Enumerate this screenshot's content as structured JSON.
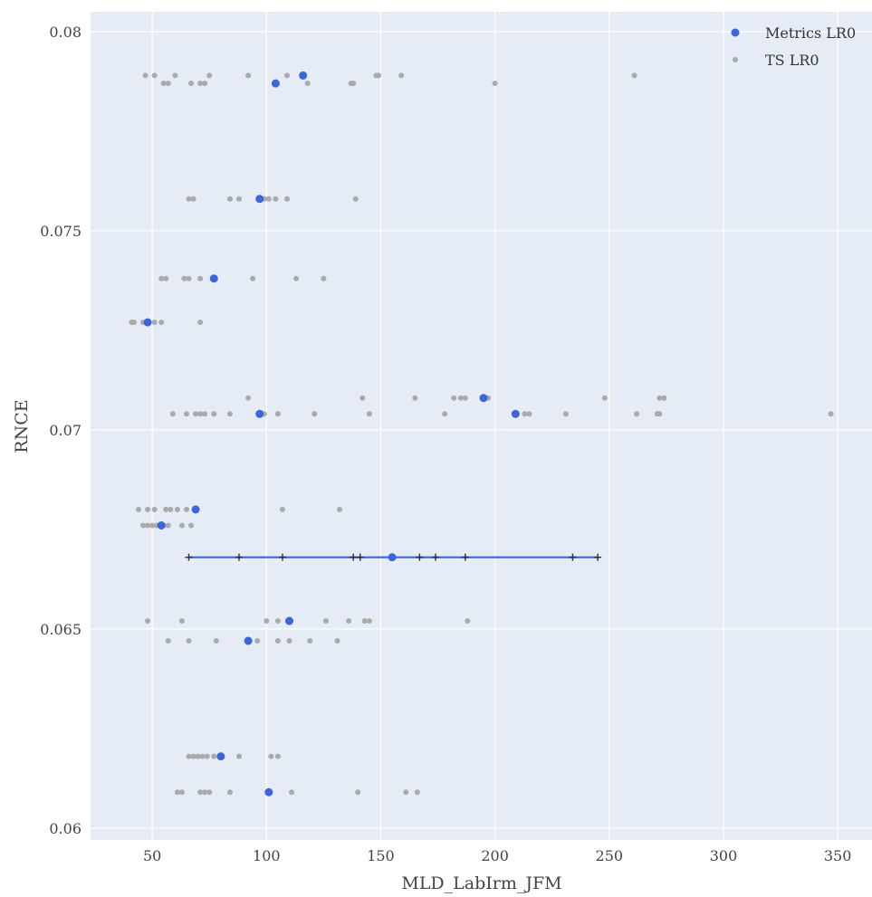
{
  "chart_data": {
    "type": "scatter",
    "xlabel": "MLD_LabIrm_JFM",
    "ylabel": "RNCE",
    "xlim": [
      23,
      365
    ],
    "ylim": [
      0.0597,
      0.0805
    ],
    "xticks": [
      50,
      100,
      150,
      200,
      250,
      300,
      350
    ],
    "xtick_labels": [
      "50",
      "100",
      "150",
      "200",
      "250",
      "300",
      "350"
    ],
    "yticks": [
      0.06,
      0.065,
      0.07,
      0.075,
      0.08
    ],
    "ytick_labels": [
      "0.06",
      "0.065",
      "0.07",
      "0.075",
      "0.08"
    ],
    "grid": true,
    "legend_position": "top-right",
    "series": [
      {
        "name": "TS LR0",
        "color": "#aaaaaa",
        "points": [
          {
            "x": 47,
            "y": 0.0789
          },
          {
            "x": 51,
            "y": 0.0789
          },
          {
            "x": 55,
            "y": 0.0787
          },
          {
            "x": 57,
            "y": 0.0787
          },
          {
            "x": 60,
            "y": 0.0789
          },
          {
            "x": 67,
            "y": 0.0787
          },
          {
            "x": 71,
            "y": 0.0787
          },
          {
            "x": 73,
            "y": 0.0787
          },
          {
            "x": 75,
            "y": 0.0789
          },
          {
            "x": 92,
            "y": 0.0789
          },
          {
            "x": 109,
            "y": 0.0789
          },
          {
            "x": 118,
            "y": 0.0787
          },
          {
            "x": 137,
            "y": 0.0787
          },
          {
            "x": 138,
            "y": 0.0787
          },
          {
            "x": 148,
            "y": 0.0789
          },
          {
            "x": 149,
            "y": 0.0789
          },
          {
            "x": 159,
            "y": 0.0789
          },
          {
            "x": 200,
            "y": 0.0787
          },
          {
            "x": 261,
            "y": 0.0789
          },
          {
            "x": 66,
            "y": 0.0758
          },
          {
            "x": 68,
            "y": 0.0758
          },
          {
            "x": 84,
            "y": 0.0758
          },
          {
            "x": 88,
            "y": 0.0758
          },
          {
            "x": 99,
            "y": 0.0758
          },
          {
            "x": 101,
            "y": 0.0758
          },
          {
            "x": 104,
            "y": 0.0758
          },
          {
            "x": 109,
            "y": 0.0758
          },
          {
            "x": 139,
            "y": 0.0758
          },
          {
            "x": 54,
            "y": 0.0738
          },
          {
            "x": 56,
            "y": 0.0738
          },
          {
            "x": 64,
            "y": 0.0738
          },
          {
            "x": 66,
            "y": 0.0738
          },
          {
            "x": 71,
            "y": 0.0738
          },
          {
            "x": 94,
            "y": 0.0738
          },
          {
            "x": 113,
            "y": 0.0738
          },
          {
            "x": 125,
            "y": 0.0738
          },
          {
            "x": 41,
            "y": 0.0727
          },
          {
            "x": 42,
            "y": 0.0727
          },
          {
            "x": 46,
            "y": 0.0727
          },
          {
            "x": 51,
            "y": 0.0727
          },
          {
            "x": 54,
            "y": 0.0727
          },
          {
            "x": 71,
            "y": 0.0727
          },
          {
            "x": 92,
            "y": 0.0708
          },
          {
            "x": 142,
            "y": 0.0708
          },
          {
            "x": 165,
            "y": 0.0708
          },
          {
            "x": 182,
            "y": 0.0708
          },
          {
            "x": 185,
            "y": 0.0708
          },
          {
            "x": 187,
            "y": 0.0708
          },
          {
            "x": 197,
            "y": 0.0708
          },
          {
            "x": 248,
            "y": 0.0708
          },
          {
            "x": 272,
            "y": 0.0708
          },
          {
            "x": 274,
            "y": 0.0708
          },
          {
            "x": 59,
            "y": 0.0704
          },
          {
            "x": 65,
            "y": 0.0704
          },
          {
            "x": 69,
            "y": 0.0704
          },
          {
            "x": 71,
            "y": 0.0704
          },
          {
            "x": 73,
            "y": 0.0704
          },
          {
            "x": 77,
            "y": 0.0704
          },
          {
            "x": 84,
            "y": 0.0704
          },
          {
            "x": 99,
            "y": 0.0704
          },
          {
            "x": 105,
            "y": 0.0704
          },
          {
            "x": 121,
            "y": 0.0704
          },
          {
            "x": 145,
            "y": 0.0704
          },
          {
            "x": 178,
            "y": 0.0704
          },
          {
            "x": 213,
            "y": 0.0704
          },
          {
            "x": 215,
            "y": 0.0704
          },
          {
            "x": 231,
            "y": 0.0704
          },
          {
            "x": 262,
            "y": 0.0704
          },
          {
            "x": 271,
            "y": 0.0704
          },
          {
            "x": 272,
            "y": 0.0704
          },
          {
            "x": 347,
            "y": 0.0704
          },
          {
            "x": 44,
            "y": 0.068
          },
          {
            "x": 48,
            "y": 0.068
          },
          {
            "x": 51,
            "y": 0.068
          },
          {
            "x": 56,
            "y": 0.068
          },
          {
            "x": 58,
            "y": 0.068
          },
          {
            "x": 61,
            "y": 0.068
          },
          {
            "x": 65,
            "y": 0.068
          },
          {
            "x": 107,
            "y": 0.068
          },
          {
            "x": 132,
            "y": 0.068
          },
          {
            "x": 46,
            "y": 0.0676
          },
          {
            "x": 48,
            "y": 0.0676
          },
          {
            "x": 50,
            "y": 0.0676
          },
          {
            "x": 52,
            "y": 0.0676
          },
          {
            "x": 55,
            "y": 0.0676
          },
          {
            "x": 57,
            "y": 0.0676
          },
          {
            "x": 63,
            "y": 0.0676
          },
          {
            "x": 67,
            "y": 0.0676
          },
          {
            "x": 48,
            "y": 0.0652
          },
          {
            "x": 63,
            "y": 0.0652
          },
          {
            "x": 100,
            "y": 0.0652
          },
          {
            "x": 105,
            "y": 0.0652
          },
          {
            "x": 126,
            "y": 0.0652
          },
          {
            "x": 136,
            "y": 0.0652
          },
          {
            "x": 143,
            "y": 0.0652
          },
          {
            "x": 145,
            "y": 0.0652
          },
          {
            "x": 188,
            "y": 0.0652
          },
          {
            "x": 57,
            "y": 0.0647
          },
          {
            "x": 66,
            "y": 0.0647
          },
          {
            "x": 78,
            "y": 0.0647
          },
          {
            "x": 96,
            "y": 0.0647
          },
          {
            "x": 105,
            "y": 0.0647
          },
          {
            "x": 110,
            "y": 0.0647
          },
          {
            "x": 119,
            "y": 0.0647
          },
          {
            "x": 131,
            "y": 0.0647
          },
          {
            "x": 66,
            "y": 0.0618
          },
          {
            "x": 68,
            "y": 0.0618
          },
          {
            "x": 70,
            "y": 0.0618
          },
          {
            "x": 72,
            "y": 0.0618
          },
          {
            "x": 74,
            "y": 0.0618
          },
          {
            "x": 77,
            "y": 0.0618
          },
          {
            "x": 88,
            "y": 0.0618
          },
          {
            "x": 102,
            "y": 0.0618
          },
          {
            "x": 105,
            "y": 0.0618
          },
          {
            "x": 61,
            "y": 0.0609
          },
          {
            "x": 63,
            "y": 0.0609
          },
          {
            "x": 71,
            "y": 0.0609
          },
          {
            "x": 73,
            "y": 0.0609
          },
          {
            "x": 75,
            "y": 0.0609
          },
          {
            "x": 84,
            "y": 0.0609
          },
          {
            "x": 111,
            "y": 0.0609
          },
          {
            "x": 140,
            "y": 0.0609
          },
          {
            "x": 161,
            "y": 0.0609
          },
          {
            "x": 166,
            "y": 0.0609
          }
        ]
      },
      {
        "name": "Metrics LR0",
        "color": "#3b66d9",
        "points": [
          {
            "x": 116,
            "y": 0.0789
          },
          {
            "x": 104,
            "y": 0.0787
          },
          {
            "x": 97,
            "y": 0.0758
          },
          {
            "x": 77,
            "y": 0.0738
          },
          {
            "x": 48,
            "y": 0.0727
          },
          {
            "x": 195,
            "y": 0.0708
          },
          {
            "x": 97,
            "y": 0.0704
          },
          {
            "x": 209,
            "y": 0.0704
          },
          {
            "x": 69,
            "y": 0.068
          },
          {
            "x": 54,
            "y": 0.0676
          },
          {
            "x": 155,
            "y": 0.0668
          },
          {
            "x": 110,
            "y": 0.0652
          },
          {
            "x": 92,
            "y": 0.0647
          },
          {
            "x": 80,
            "y": 0.0618
          },
          {
            "x": 101,
            "y": 0.0609
          }
        ]
      }
    ],
    "range_line": {
      "y": 0.0668,
      "x_range": [
        66,
        245
      ],
      "color": "#3b66d9",
      "tick_marks": [
        66,
        88,
        107,
        138,
        141,
        167,
        174,
        187,
        234,
        245
      ]
    }
  }
}
